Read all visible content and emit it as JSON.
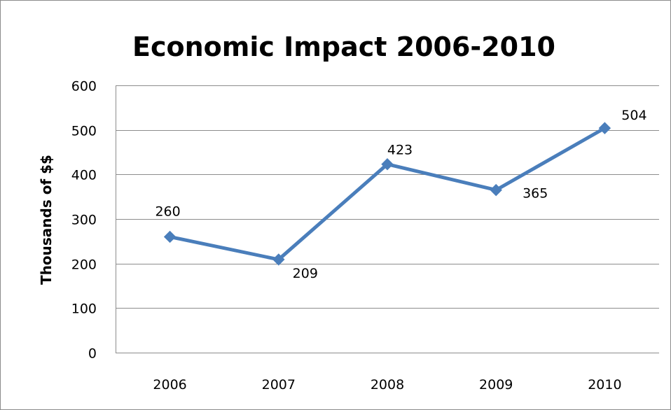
{
  "chart_data": {
    "type": "line",
    "title": "Economic Impact 2006-2010",
    "xlabel": "",
    "ylabel": "Thousands of $$",
    "categories": [
      "2006",
      "2007",
      "2008",
      "2009",
      "2010"
    ],
    "series": [
      {
        "values": [
          260,
          209,
          423,
          365,
          504
        ]
      }
    ],
    "data_labels": [
      "260",
      "209",
      "423",
      "365",
      "504"
    ],
    "ylim": [
      0,
      600
    ],
    "yticks": [
      0,
      100,
      200,
      300,
      400,
      500,
      600
    ],
    "grid": true,
    "legend": "none",
    "line_color": "#4a7ebb",
    "marker": "diamond"
  }
}
